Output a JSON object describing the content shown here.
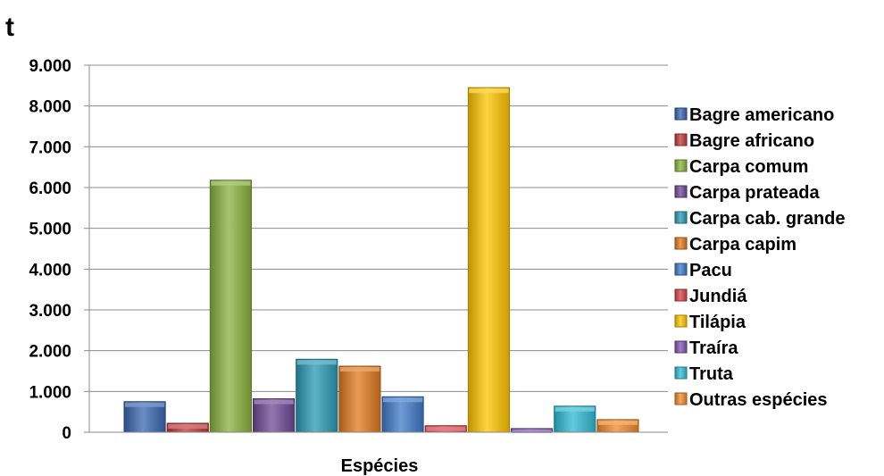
{
  "chart_data": {
    "type": "bar",
    "ylabel": "t",
    "xlabel": "Espécies",
    "ylim": [
      0,
      9000
    ],
    "yticks": [
      0,
      1000,
      2000,
      3000,
      4000,
      5000,
      6000,
      7000,
      8000,
      9000
    ],
    "ytick_labels": [
      "0",
      "1.000",
      "2.000",
      "3.000",
      "4.000",
      "5.000",
      "6.000",
      "7.000",
      "8.000",
      "9.000"
    ],
    "grid": true,
    "legend_position": "right",
    "series": [
      {
        "name": "Bagre americano",
        "value": 750,
        "color": "#3a66b0"
      },
      {
        "name": "Bagre africano",
        "value": 220,
        "color": "#c0393a"
      },
      {
        "name": "Carpa comum",
        "value": 6180,
        "color": "#8ab13e"
      },
      {
        "name": "Carpa prateada",
        "value": 820,
        "color": "#6f4a96"
      },
      {
        "name": "Carpa cab. grande",
        "value": 1790,
        "color": "#2a9ab3"
      },
      {
        "name": "Carpa capim",
        "value": 1620,
        "color": "#e07b1e"
      },
      {
        "name": "Pacu",
        "value": 870,
        "color": "#3f79c9"
      },
      {
        "name": "Jundiá",
        "value": 160,
        "color": "#d6424a"
      },
      {
        "name": "Tilápia",
        "value": 8450,
        "color": "#ffc400"
      },
      {
        "name": "Traíra",
        "value": 90,
        "color": "#8055b0"
      },
      {
        "name": "Truta",
        "value": 640,
        "color": "#2fbad3"
      },
      {
        "name": "Outras espécies",
        "value": 310,
        "color": "#f08a2a"
      }
    ]
  }
}
